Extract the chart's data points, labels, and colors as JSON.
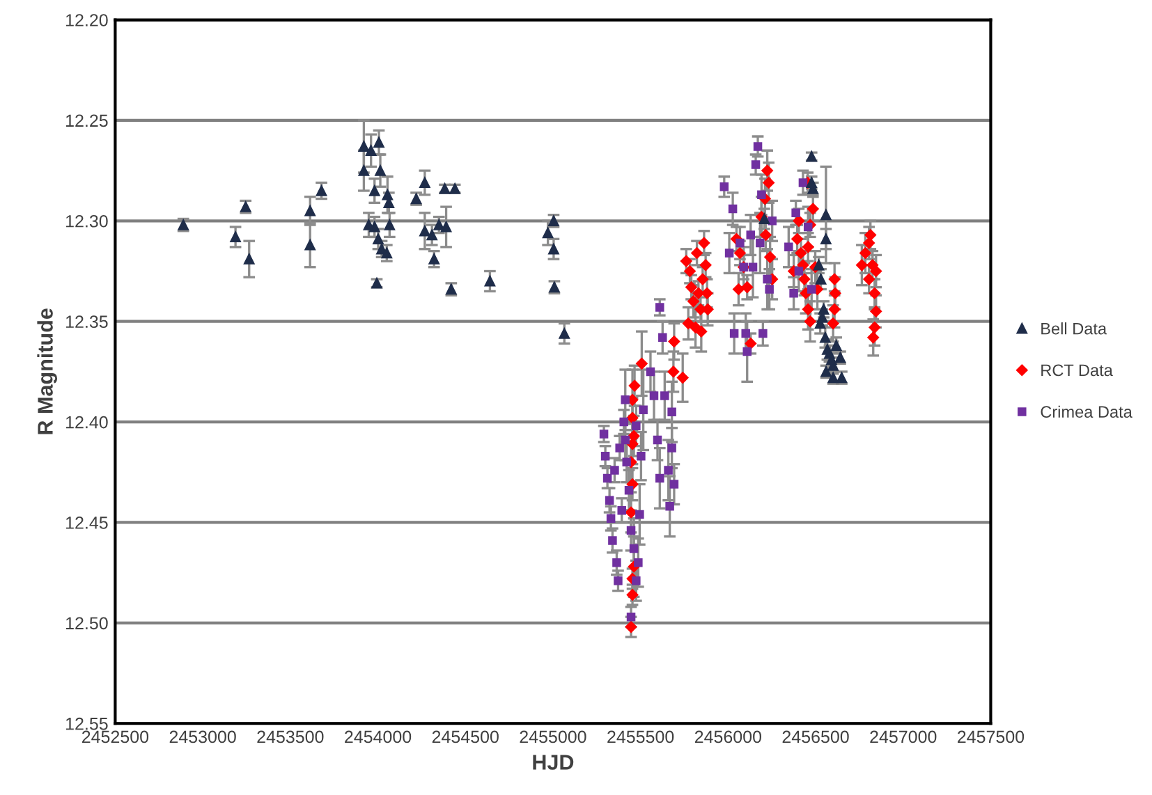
{
  "chart_data": {
    "type": "scatter",
    "xlabel": "HJD",
    "ylabel": "R Magnitude",
    "xlim": [
      2452500,
      2457500
    ],
    "xticks": [
      2452500,
      2453000,
      2453500,
      2454000,
      2454500,
      2455000,
      2455500,
      2456000,
      2456500,
      2457000,
      2457500
    ],
    "ylim": [
      12.55,
      12.2
    ],
    "yticks": [
      {
        "value": 12.2,
        "label": "12.20"
      },
      {
        "value": 12.25,
        "label": "12.25"
      },
      {
        "value": 12.3,
        "label": "12.30"
      },
      {
        "value": 12.35,
        "label": "12.35"
      },
      {
        "value": 12.4,
        "label": "12.40"
      },
      {
        "value": 12.45,
        "label": "12.45"
      },
      {
        "value": 12.5,
        "label": "12.50"
      },
      {
        "value": 12.55,
        "label": "12.55"
      }
    ],
    "grid": "y",
    "legend": "right",
    "series": [
      {
        "name": "Bell Data",
        "color": "#1f2d4a",
        "marker": "triangle",
        "x": [
          2452889,
          2453187,
          2453245,
          2453265,
          2453613,
          2453613,
          2453678,
          2453920,
          2453920,
          2453961,
          2454006,
          2454014,
          2453981,
          2453948,
          2453981,
          2454002,
          2454022,
          2454051,
          2453994,
          2454055,
          2454063,
          2454067,
          2454219,
          2454268,
          2454268,
          2454309,
          2454321,
          2454349,
          2454390,
          2454382,
          2454440,
          2454419,
          2454640,
          2454971,
          2455004,
          2455004,
          2455008,
          2455065,
          2456207,
          2456477,
          2456477,
          2456485,
          2456559,
          2456559,
          2456530,
          2456526,
          2456538,
          2456546,
          2456555,
          2456567,
          2456579,
          2456591,
          2456600,
          2456618,
          2456649,
          2456600,
          2456560,
          2456641,
          2456518
        ],
        "values": [
          12.302,
          12.308,
          12.293,
          12.319,
          12.295,
          12.312,
          12.285,
          12.263,
          12.275,
          12.265,
          12.261,
          12.275,
          12.285,
          12.302,
          12.303,
          12.309,
          12.314,
          12.316,
          12.331,
          12.287,
          12.291,
          12.302,
          12.289,
          12.281,
          12.305,
          12.307,
          12.319,
          12.302,
          12.303,
          12.284,
          12.284,
          12.334,
          12.33,
          12.306,
          12.3,
          12.314,
          12.333,
          12.356,
          12.299,
          12.268,
          12.281,
          12.284,
          12.297,
          12.309,
          12.329,
          12.351,
          12.348,
          12.344,
          12.358,
          12.364,
          12.366,
          12.369,
          12.372,
          12.362,
          12.378,
          12.378,
          12.375,
          12.368,
          12.322
        ],
        "errors": [
          0.003,
          0.005,
          0.003,
          0.009,
          0.007,
          0.011,
          0.004,
          0.013,
          0.01,
          0.008,
          0.006,
          0.008,
          0.006,
          0.006,
          0.005,
          0.005,
          0.004,
          0.004,
          0.002,
          0.009,
          0.005,
          0.006,
          0.003,
          0.006,
          0.009,
          0.005,
          0.004,
          0.004,
          0.01,
          0.002,
          0.002,
          0.003,
          0.005,
          0.006,
          0.003,
          0.005,
          0.003,
          0.005,
          0.005,
          0.002,
          0.003,
          0.003,
          0.024,
          0.005,
          0.005,
          0.005,
          0.004,
          0.004,
          0.005,
          0.005,
          0.004,
          0.004,
          0.004,
          0.004,
          0.003,
          0.003,
          0.003,
          0.003,
          0.004
        ]
      },
      {
        "name": "RCT Data",
        "color": "#ff0000",
        "marker": "diamond",
        "x": [
          2455446,
          2455454,
          2455454,
          2455462,
          2455446,
          2455454,
          2455446,
          2455454,
          2455462,
          2455454,
          2455454,
          2455466,
          2455507,
          2455692,
          2455688,
          2455741,
          2455761,
          2455782,
          2455790,
          2455802,
          2455773,
          2455822,
          2455831,
          2455843,
          2455855,
          2455863,
          2455872,
          2455880,
          2455884,
          2455814,
          2455847,
          2456048,
          2456068,
          2456089,
          2456109,
          2456129,
          2456191,
          2456211,
          2456224,
          2456232,
          2456215,
          2456240,
          2456252,
          2456060,
          2456395,
          2456416,
          2456428,
          2456436,
          2456444,
          2456457,
          2456469,
          2456455,
          2456485,
          2456469,
          2456457,
          2456498,
          2456510,
          2456404,
          2456375,
          2456608,
          2456612,
          2456608,
          2456600,
          2456784,
          2456805,
          2456813,
          2456805,
          2456825,
          2456837,
          2456845,
          2456837,
          2456829,
          2456845,
          2456764
        ],
        "values": [
          12.502,
          12.486,
          12.478,
          12.472,
          12.445,
          12.431,
          12.42,
          12.411,
          12.407,
          12.398,
          12.389,
          12.382,
          12.371,
          12.36,
          12.375,
          12.378,
          12.32,
          12.325,
          12.333,
          12.34,
          12.351,
          12.316,
          12.336,
          12.344,
          12.329,
          12.311,
          12.322,
          12.336,
          12.344,
          12.353,
          12.355,
          12.309,
          12.316,
          12.323,
          12.333,
          12.361,
          12.298,
          12.289,
          12.275,
          12.281,
          12.307,
          12.318,
          12.329,
          12.334,
          12.309,
          12.316,
          12.322,
          12.329,
          12.336,
          12.344,
          12.35,
          12.281,
          12.294,
          12.302,
          12.313,
          12.323,
          12.334,
          12.3,
          12.325,
          12.329,
          12.336,
          12.344,
          12.351,
          12.316,
          12.311,
          12.307,
          12.329,
          12.322,
          12.336,
          12.345,
          12.353,
          12.358,
          12.325,
          12.322
        ],
        "errors": [
          0.005,
          0.005,
          0.005,
          0.015,
          0.01,
          0.008,
          0.01,
          0.01,
          0.01,
          0.01,
          0.015,
          0.01,
          0.016,
          0.009,
          0.01,
          0.012,
          0.006,
          0.006,
          0.006,
          0.008,
          0.008,
          0.006,
          0.006,
          0.006,
          0.006,
          0.006,
          0.006,
          0.007,
          0.008,
          0.01,
          0.01,
          0.006,
          0.006,
          0.006,
          0.006,
          0.005,
          0.01,
          0.01,
          0.01,
          0.01,
          0.008,
          0.01,
          0.01,
          0.008,
          0.007,
          0.007,
          0.007,
          0.008,
          0.01,
          0.01,
          0.01,
          0.005,
          0.006,
          0.006,
          0.007,
          0.008,
          0.01,
          0.006,
          0.008,
          0.008,
          0.008,
          0.009,
          0.009,
          0.01,
          0.008,
          0.007,
          0.007,
          0.007,
          0.007,
          0.008,
          0.009,
          0.009,
          0.008,
          0.01
        ]
      },
      {
        "name": "Crimea Data",
        "color": "#7030a0",
        "marker": "square",
        "x": [
          2455291,
          2455299,
          2455311,
          2455323,
          2455331,
          2455340,
          2455364,
          2455372,
          2455352,
          2455381,
          2455393,
          2455405,
          2455413,
          2455421,
          2455434,
          2455446,
          2455446,
          2455462,
          2455475,
          2455487,
          2455495,
          2455503,
          2455516,
          2455475,
          2455413,
          2455557,
          2455577,
          2455597,
          2455610,
          2455626,
          2455638,
          2455659,
          2455667,
          2455679,
          2455692,
          2455679,
          2455610,
          2455978,
          2456007,
          2456027,
          2456035,
          2456068,
          2456089,
          2456101,
          2456109,
          2456142,
          2456158,
          2456170,
          2456183,
          2456191,
          2456199,
          2456224,
          2456236,
          2456252,
          2456129,
          2456346,
          2456387,
          2456404,
          2456428,
          2456457,
          2456477,
          2456375
        ],
        "values": [
          12.406,
          12.417,
          12.428,
          12.439,
          12.448,
          12.459,
          12.47,
          12.479,
          12.424,
          12.413,
          12.444,
          12.4,
          12.389,
          12.42,
          12.434,
          12.454,
          12.497,
          12.463,
          12.479,
          12.47,
          12.446,
          12.417,
          12.394,
          12.402,
          12.409,
          12.375,
          12.387,
          12.409,
          12.428,
          12.358,
          12.387,
          12.424,
          12.442,
          12.413,
          12.431,
          12.395,
          12.343,
          12.283,
          12.316,
          12.294,
          12.356,
          12.311,
          12.323,
          12.356,
          12.365,
          12.323,
          12.272,
          12.263,
          12.311,
          12.287,
          12.356,
          12.329,
          12.334,
          12.3,
          12.307,
          12.313,
          12.296,
          12.325,
          12.281,
          12.303,
          12.334,
          12.336
        ],
        "errors": [
          0.004,
          0.005,
          0.005,
          0.006,
          0.006,
          0.006,
          0.006,
          0.005,
          0.006,
          0.006,
          0.006,
          0.006,
          0.015,
          0.01,
          0.01,
          0.01,
          0.005,
          0.015,
          0.01,
          0.012,
          0.015,
          0.012,
          0.02,
          0.01,
          0.01,
          0.01,
          0.012,
          0.01,
          0.015,
          0.008,
          0.012,
          0.015,
          0.015,
          0.01,
          0.01,
          0.015,
          0.004,
          0.005,
          0.01,
          0.008,
          0.01,
          0.008,
          0.01,
          0.01,
          0.015,
          0.015,
          0.005,
          0.005,
          0.015,
          0.01,
          0.006,
          0.015,
          0.01,
          0.01,
          0.01,
          0.01,
          0.006,
          0.01,
          0.006,
          0.01,
          0.01,
          0.008
        ]
      }
    ]
  }
}
